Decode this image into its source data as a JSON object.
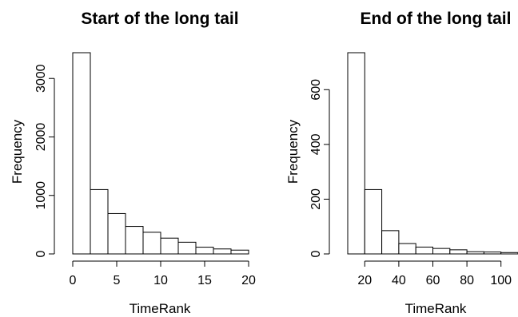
{
  "chart_data": [
    {
      "type": "bar",
      "title": "Start of the long tail",
      "xlabel": "TimeRank",
      "ylabel": "Frequency",
      "bins": [
        [
          0,
          2
        ],
        [
          2,
          4
        ],
        [
          4,
          6
        ],
        [
          6,
          8
        ],
        [
          8,
          10
        ],
        [
          10,
          12
        ],
        [
          12,
          14
        ],
        [
          14,
          16
        ],
        [
          16,
          18
        ],
        [
          18,
          20
        ]
      ],
      "values": [
        3440,
        1100,
        690,
        470,
        370,
        270,
        200,
        115,
        85,
        65
      ],
      "xticks": [
        0,
        5,
        10,
        15,
        20
      ],
      "yticks": [
        0,
        1000,
        2000,
        3000
      ],
      "xlim": [
        0,
        20
      ],
      "ylim": [
        0,
        3440
      ]
    },
    {
      "type": "bar",
      "title": "End of the long tail",
      "xlabel": "TimeRank",
      "ylabel": "Frequency",
      "bins": [
        [
          10,
          20
        ],
        [
          20,
          30
        ],
        [
          30,
          40
        ],
        [
          40,
          50
        ],
        [
          50,
          60
        ],
        [
          60,
          70
        ],
        [
          70,
          80
        ],
        [
          80,
          90
        ],
        [
          90,
          100
        ],
        [
          100,
          110
        ]
      ],
      "values": [
        735,
        235,
        85,
        38,
        25,
        20,
        15,
        8,
        7,
        5
      ],
      "xticks": [
        20,
        40,
        60,
        80,
        100
      ],
      "yticks": [
        0,
        200,
        400,
        600
      ],
      "xlim": [
        10,
        110
      ],
      "ylim": [
        0,
        735
      ]
    }
  ]
}
